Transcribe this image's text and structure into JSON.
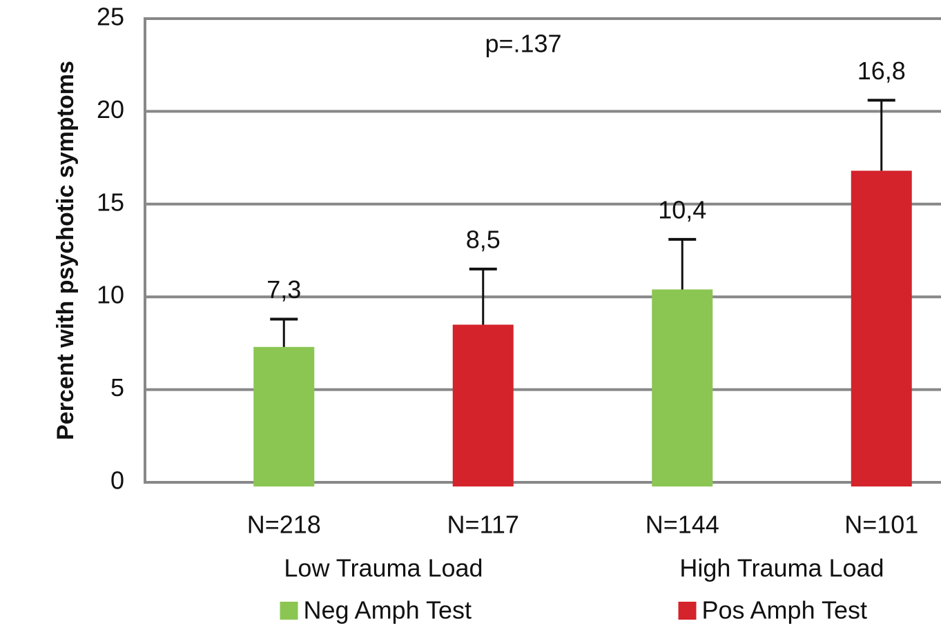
{
  "chart_data": {
    "type": "bar",
    "ylabel": "Percent with psychotic symptoms",
    "annotation": "p=.137",
    "categories": [
      "N=218",
      "N=117",
      "N=144",
      "N=101"
    ],
    "groups": [
      {
        "label": "Low Trauma Load",
        "categories": [
          0,
          1
        ]
      },
      {
        "label": "High Trauma Load",
        "categories": [
          2,
          3
        ]
      }
    ],
    "series": [
      {
        "name": "Neg Amph Test",
        "color": "#8bc653",
        "values": [
          7.3,
          null,
          10.4,
          null
        ],
        "errors": [
          1.5,
          null,
          2.7,
          null
        ],
        "value_labels": [
          "7,3",
          null,
          "10,4",
          null
        ]
      },
      {
        "name": "Pos Amph Test",
        "color": "#d4232b",
        "values": [
          null,
          8.5,
          null,
          16.8
        ],
        "errors": [
          null,
          3.0,
          null,
          3.8
        ],
        "value_labels": [
          null,
          "8,5",
          null,
          "16,8"
        ]
      }
    ],
    "ylim": [
      0,
      25
    ],
    "yticks": [
      0,
      5,
      10,
      15,
      20,
      25
    ],
    "grid": true
  }
}
